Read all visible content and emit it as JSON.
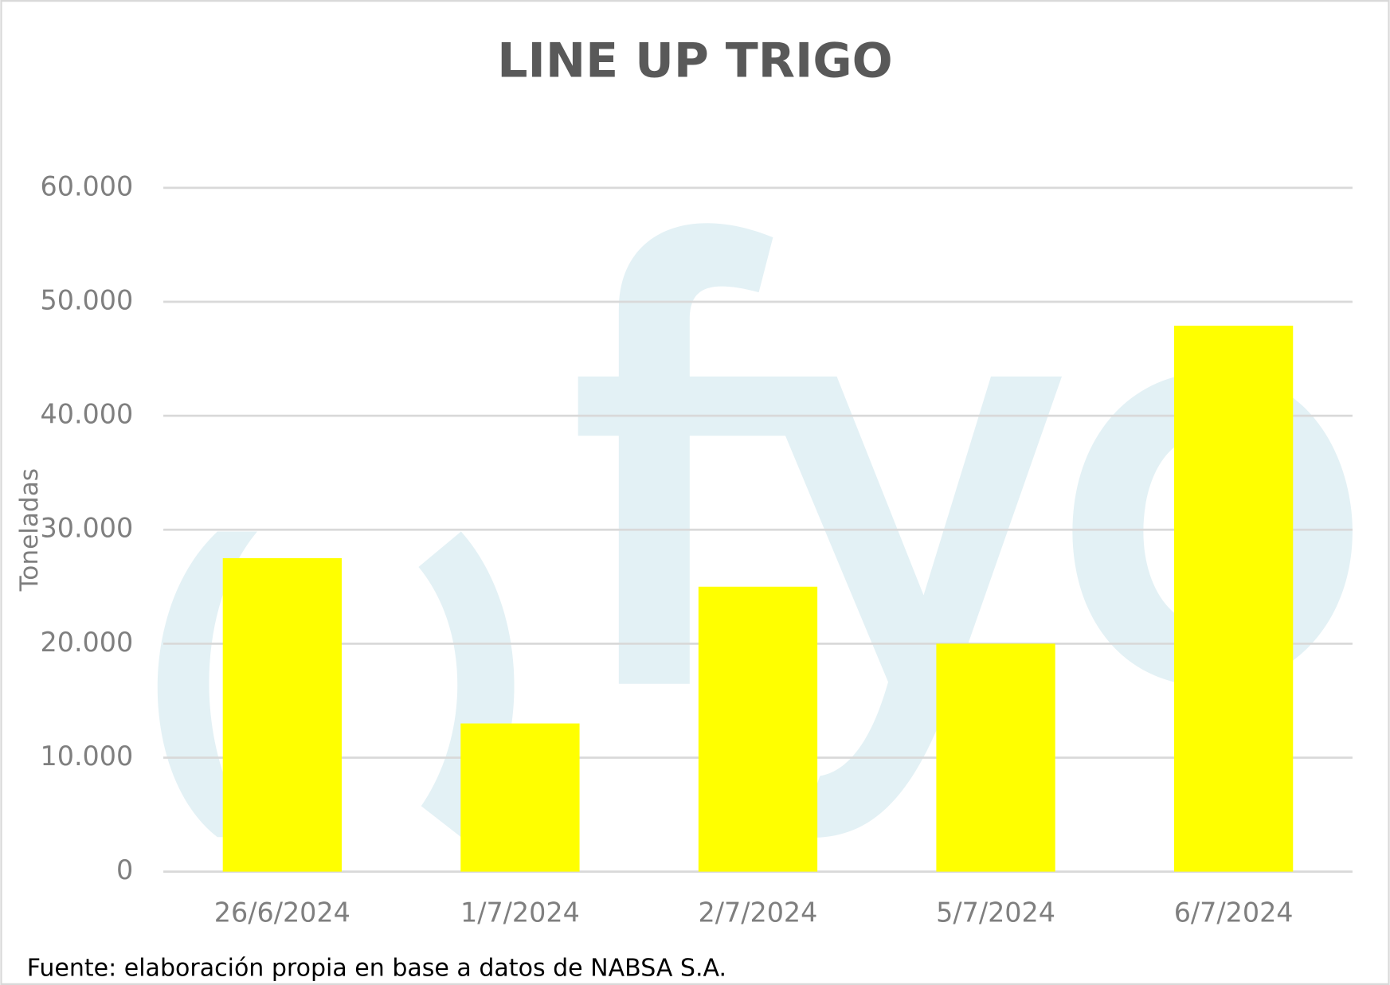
{
  "chart_data": {
    "type": "bar",
    "title": "LINE UP TRIGO",
    "y_label": "Toneladas",
    "source": "Fuente: elaboración propia en base a datos de NABSA S.A.",
    "categories": [
      "26/6/2024",
      "1/7/2024",
      "2/7/2024",
      "5/7/2024",
      "6/7/2024"
    ],
    "values": [
      27500,
      13000,
      25000,
      20000,
      47900
    ],
    "color": "#ffff00",
    "ylim": [
      0,
      60000
    ],
    "yticks": [
      0,
      {
        "value": 10000,
        "label": "10.000"
      },
      {
        "value": 20000,
        "label": "20.000"
      },
      {
        "value": 30000,
        "label": "30.000"
      },
      {
        "value": 40000,
        "label": "40.000"
      },
      {
        "value": 50000,
        "label": "50.000"
      },
      {
        "value": 60000,
        "label": "60.000"
      }
    ],
    "grid": true
  }
}
